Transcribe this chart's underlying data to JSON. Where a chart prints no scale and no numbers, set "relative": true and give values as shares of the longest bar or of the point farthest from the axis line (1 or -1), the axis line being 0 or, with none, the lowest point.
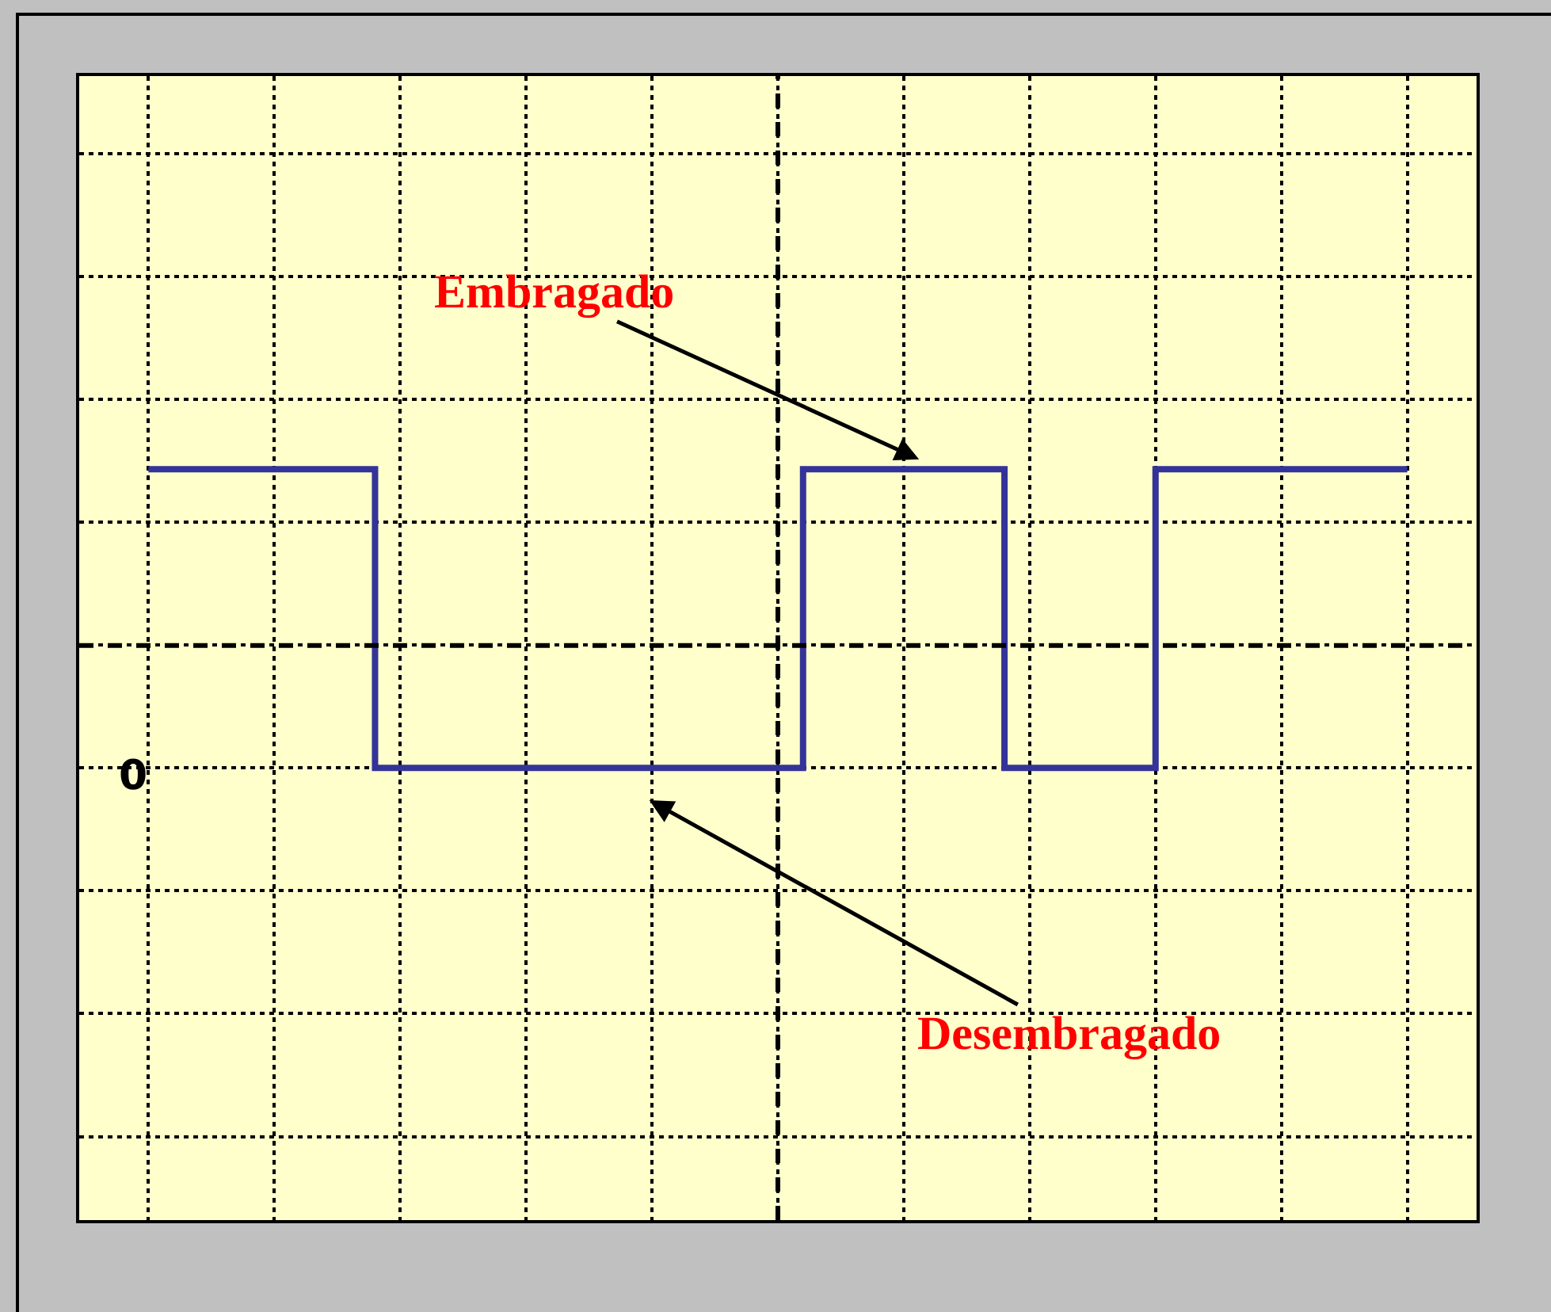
{
  "chart_data": {
    "type": "step",
    "relative": true,
    "categories": [
      null,
      null,
      null,
      null,
      null,
      null,
      null,
      null,
      null,
      null,
      null,
      null,
      null,
      null,
      null,
      null,
      null,
      null,
      null,
      null,
      null,
      null,
      null,
      null,
      null,
      null,
      null,
      null,
      null,
      null,
      null,
      null,
      null,
      null,
      null,
      null,
      null,
      null,
      null,
      null,
      null,
      null,
      null,
      null,
      null,
      null,
      null,
      null,
      null,
      null,
      null
    ],
    "series": [
      {
        "color": "#333399",
        "values": [
          1,
          1,
          1,
          1,
          1,
          1,
          1,
          1,
          1,
          0,
          0,
          0,
          0,
          0,
          0,
          0,
          0,
          0,
          0,
          0,
          0,
          0,
          0,
          0,
          0,
          0,
          1,
          1,
          1,
          1,
          1,
          1,
          1,
          1,
          0,
          0,
          0,
          0,
          0,
          0,
          1,
          1,
          1,
          1,
          1,
          1,
          1,
          1,
          1,
          1,
          1
        ]
      }
    ],
    "ref_lines": [
      {
        "axis": "y",
        "value": 0.41,
        "color": "#000000",
        "line_style": "dashed"
      }
    ],
    "grid": true,
    "line_style": "solid",
    "marker": "none",
    "annotations": [
      "Embragado",
      "Desembragado",
      "0"
    ]
  }
}
